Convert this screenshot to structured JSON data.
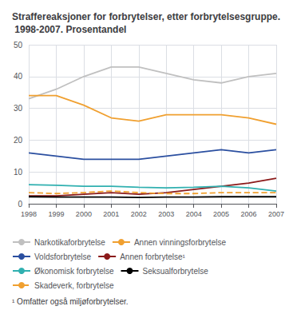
{
  "chart_data": {
    "type": "line",
    "title": "Straffereaksjoner for forbrytelser, etter forbrytelsesgruppe. 1998-2007. Prosentandel",
    "categories": [
      "1998",
      "1999",
      "2000",
      "2001",
      "2002",
      "2003",
      "2004",
      "2005",
      "2006",
      "2007"
    ],
    "series": [
      {
        "name": "Narkotikaforbrytelse",
        "color": "#c0c0c0",
        "line_style": "solid",
        "values": [
          33,
          36,
          40,
          43,
          43,
          41,
          39,
          38,
          40,
          41
        ]
      },
      {
        "name": "Annen vinningsforbrytelse",
        "color": "#f0a030",
        "line_style": "solid",
        "values": [
          34,
          34,
          31,
          27,
          26,
          28,
          28,
          28,
          27,
          25
        ]
      },
      {
        "name": "Voldsforbrytelse",
        "color": "#2b4fa0",
        "line_style": "solid",
        "values": [
          16,
          15,
          14,
          14,
          14,
          15,
          16,
          17,
          16,
          17
        ]
      },
      {
        "name": "Annen forbrytelse¹",
        "color": "#8b1a1a",
        "line_style": "solid",
        "values": [
          2.5,
          2.5,
          3.0,
          3.5,
          3.0,
          3.5,
          4.5,
          5.5,
          6.5,
          8.0
        ]
      },
      {
        "name": "Økonomisk forbrytelse",
        "color": "#30b0b0",
        "line_style": "solid",
        "values": [
          6.0,
          5.8,
          5.5,
          5.5,
          5.2,
          5.0,
          5.2,
          5.5,
          5.0,
          4.0
        ]
      },
      {
        "name": "Seksualforbrytelse",
        "color": "#000000",
        "line_style": "solid",
        "values": [
          2.2,
          2.1,
          2.1,
          2.1,
          2.0,
          2.1,
          2.1,
          2.2,
          2.2,
          2.2
        ]
      },
      {
        "name": "Skadeverk, forbrytelse",
        "color": "#f0a030",
        "line_style": "dashed",
        "values": [
          3.5,
          3.2,
          3.5,
          4.0,
          3.5,
          3.2,
          3.2,
          3.5,
          3.5,
          3.5
        ]
      }
    ],
    "ylim": [
      0,
      50
    ],
    "yticks": [
      0,
      10,
      20,
      30,
      40,
      50
    ],
    "grid": true,
    "legend": "bottom",
    "annotations": [
      "¹ Omfatter også miljøforbrytelser."
    ]
  }
}
